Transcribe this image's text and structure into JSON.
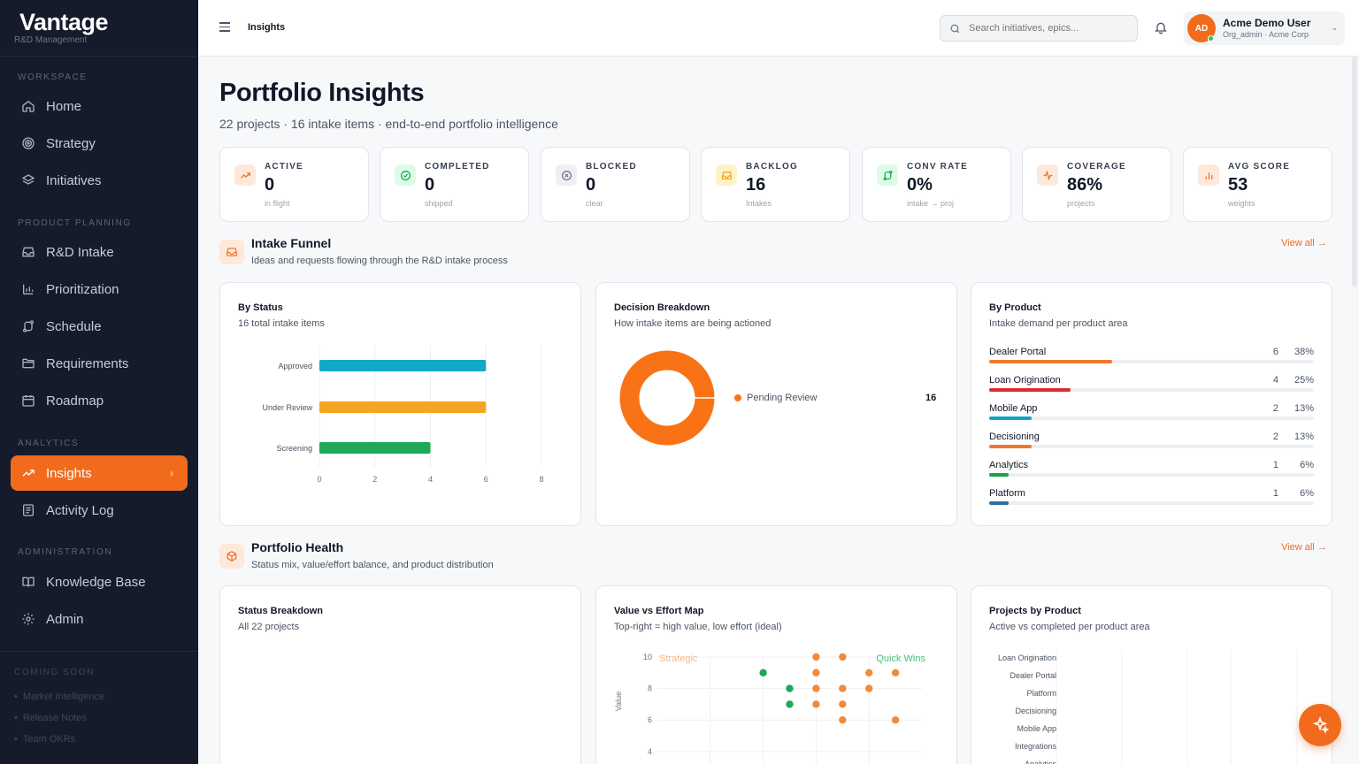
{
  "brand": {
    "name": "Vantage",
    "subtitle": "R&D Management"
  },
  "sidebar": {
    "sections": [
      "WORKSPACE",
      "PRODUCT PLANNING",
      "ANALYTICS",
      "ADMINISTRATION"
    ],
    "items": [
      {
        "label": "Home",
        "icon": "home-icon"
      },
      {
        "label": "Strategy",
        "icon": "target-icon"
      },
      {
        "label": "Initiatives",
        "icon": "layers-icon"
      },
      {
        "label": "R&D Intake",
        "icon": "inbox-icon"
      },
      {
        "label": "Prioritization",
        "icon": "bar-chart-icon"
      },
      {
        "label": "Schedule",
        "icon": "route-icon"
      },
      {
        "label": "Requirements",
        "icon": "folder-icon"
      },
      {
        "label": "Roadmap",
        "icon": "calendar-icon"
      },
      {
        "label": "Insights",
        "icon": "trending-up-icon",
        "active": true
      },
      {
        "label": "Activity Log",
        "icon": "log-icon"
      },
      {
        "label": "Knowledge Base",
        "icon": "book-icon"
      },
      {
        "label": "Admin",
        "icon": "gear-icon"
      }
    ],
    "coming_soon": {
      "label": "COMING SOON",
      "items": [
        "Market Intelligence",
        "Release Notes",
        "Team OKRs"
      ]
    }
  },
  "topbar": {
    "breadcrumb": "Insights",
    "search_placeholder": "Search initiatives, epics...",
    "user": {
      "initials": "AD",
      "name": "Acme Demo User",
      "role": "Org_admin · Acme Corp"
    }
  },
  "page": {
    "title": "Portfolio Insights",
    "subtitle": "22 projects · 16 intake items · end-to-end portfolio intelligence"
  },
  "kpis": [
    {
      "label": "ACTIVE",
      "value": "0",
      "note": "in flight",
      "color": "#f26b1d",
      "bg": "#fde8da",
      "icon": "trending-up-icon"
    },
    {
      "label": "COMPLETED",
      "value": "0",
      "note": "shipped",
      "color": "#16a34a",
      "bg": "#dcfce7",
      "icon": "check-circle-icon"
    },
    {
      "label": "BLOCKED",
      "value": "0",
      "note": "clear",
      "color": "#6b7280",
      "bg": "#eef0f3",
      "icon": "x-circle-icon"
    },
    {
      "label": "BACKLOG",
      "value": "16",
      "note": "Intakes",
      "color": "#f59e0b",
      "bg": "#fef3c7",
      "icon": "inbox-icon"
    },
    {
      "label": "CONV RATE",
      "value": "0%",
      "note": "intake → proj",
      "color": "#16a34a",
      "bg": "#dcfce7",
      "icon": "route-icon"
    },
    {
      "label": "COVERAGE",
      "value": "86%",
      "note": "projects",
      "color": "#f26b1d",
      "bg": "#fde8da",
      "icon": "activity-icon"
    },
    {
      "label": "AVG SCORE",
      "value": "53",
      "note": "weights",
      "color": "#f26b1d",
      "bg": "#fde8da",
      "icon": "bar-chart-icon"
    }
  ],
  "intake_funnel": {
    "title": "Intake Funnel",
    "subtitle": "Ideas and requests flowing through the R&D intake process",
    "view_all": "View all →",
    "by_status": {
      "title": "By Status",
      "subtitle": "16 total intake items"
    },
    "decision": {
      "title": "Decision Breakdown",
      "subtitle": "How intake items are being actioned",
      "legend": [
        {
          "label": "Pending Review",
          "value": "16",
          "color": "#f97316"
        }
      ]
    },
    "by_product": {
      "title": "By Product",
      "subtitle": "Intake demand per product area",
      "rows": [
        {
          "name": "Dealer Portal",
          "count": "6",
          "pct": "38%",
          "fraction": 0.38,
          "color": "#f0782c"
        },
        {
          "name": "Loan Origination",
          "count": "4",
          "pct": "25%",
          "fraction": 0.25,
          "color": "#d92d2d"
        },
        {
          "name": "Mobile App",
          "count": "2",
          "pct": "13%",
          "fraction": 0.13,
          "color": "#0ea5c6"
        },
        {
          "name": "Decisioning",
          "count": "2",
          "pct": "13%",
          "fraction": 0.13,
          "color": "#f0782c"
        },
        {
          "name": "Analytics",
          "count": "1",
          "pct": "6%",
          "fraction": 0.06,
          "color": "#16a34a"
        },
        {
          "name": "Platform",
          "count": "1",
          "pct": "6%",
          "fraction": 0.06,
          "color": "#2f6f9f"
        }
      ]
    }
  },
  "portfolio_health": {
    "title": "Portfolio Health",
    "subtitle": "Status mix, value/effort balance, and product distribution",
    "view_all": "View all →",
    "status_breakdown": {
      "title": "Status Breakdown",
      "subtitle": "All 22 projects"
    },
    "value_effort": {
      "title": "Value vs Effort Map",
      "subtitle": "Top-right = high value, low effort (ideal)",
      "quadrant_left": "Strategic",
      "quadrant_right": "Quick Wins"
    },
    "projects_by_product": {
      "title": "Projects by Product",
      "subtitle": "Active vs completed per product area"
    }
  },
  "chart_data": [
    {
      "type": "bar",
      "orientation": "horizontal",
      "categories": [
        "Approved",
        "Under Review",
        "Screening"
      ],
      "values": [
        6,
        6,
        4
      ],
      "colors": [
        "#12a9c9",
        "#f5a524",
        "#1fa855"
      ],
      "xlim": [
        0,
        8
      ],
      "xticks": [
        0,
        2,
        4,
        6,
        8
      ],
      "grid": true
    },
    {
      "type": "pie",
      "donut": true,
      "slices": [
        {
          "label": "Pending Review",
          "value": 16,
          "color": "#f97316"
        }
      ]
    },
    {
      "type": "scatter",
      "ylabel": "Value",
      "ylim": [
        0,
        10
      ],
      "yticks": [
        2,
        4,
        6,
        8,
        10
      ],
      "x_domain": [
        0,
        10
      ],
      "series": [
        {
          "color": "#1fa855",
          "points": [
            [
              4,
              9
            ],
            [
              5,
              8
            ],
            [
              5,
              7
            ]
          ]
        },
        {
          "color": "#f28a3a",
          "points": [
            [
              6,
              10
            ],
            [
              6,
              9
            ],
            [
              6,
              8
            ],
            [
              6,
              7
            ],
            [
              7,
              10
            ],
            [
              7,
              8
            ],
            [
              7,
              7
            ],
            [
              7,
              6
            ],
            [
              8,
              9
            ],
            [
              8,
              8
            ],
            [
              9,
              9
            ],
            [
              9,
              6
            ]
          ]
        }
      ]
    },
    {
      "type": "bar",
      "orientation": "horizontal",
      "categories": [
        "Loan Origination",
        "Dealer Portal",
        "Platform",
        "Decisioning",
        "Mobile App",
        "Integrations",
        "Analytics"
      ],
      "series": []
    }
  ]
}
